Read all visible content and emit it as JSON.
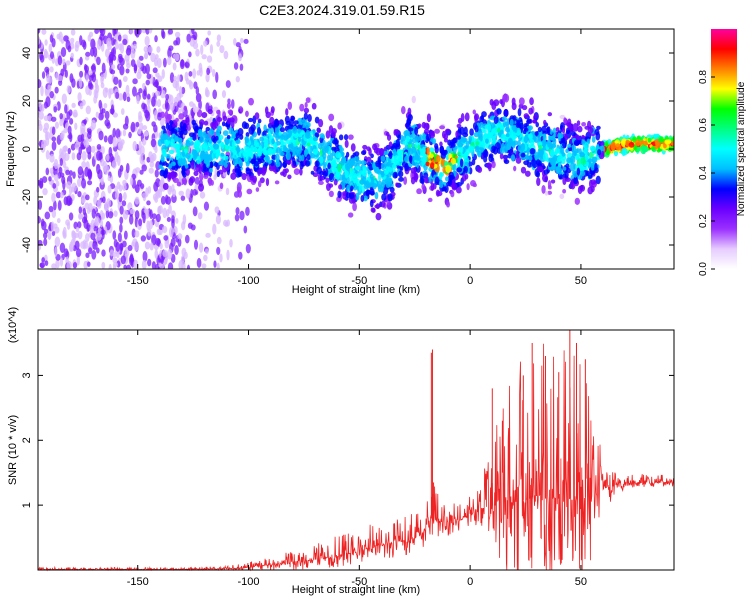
{
  "title": "C2E3.2024.319.01.59.R15",
  "chart_data": [
    {
      "type": "heatmap",
      "title": "C2E3.2024.319.01.59.R15",
      "xlabel": "Height of straight line (km)",
      "ylabel": "Frequency (Hz)",
      "xlim": [
        -195,
        92
      ],
      "ylim": [
        -50,
        50
      ],
      "xticks": [
        -150,
        -100,
        -50,
        0,
        50
      ],
      "yticks": [
        -40,
        -20,
        0,
        20,
        40
      ],
      "colorbar": {
        "label": "Normalized spectral amplitude",
        "range": [
          0,
          1
        ],
        "ticks": [
          "0.0",
          "0.2",
          "0.4",
          "0.6",
          "0.8"
        ],
        "colormap": [
          "#ffffff",
          "#e6ccff",
          "#9b30ff",
          "#6a00ff",
          "#0000ff",
          "#00bfff",
          "#00ffff",
          "#00ff80",
          "#00ff00",
          "#ffff00",
          "#ff8000",
          "#ff0000",
          "#ff00a0"
        ]
      },
      "ridge": [
        {
          "x": -140,
          "y": 0
        },
        {
          "x": -120,
          "y": 0
        },
        {
          "x": -100,
          "y": 0
        },
        {
          "x": -85,
          "y": 2
        },
        {
          "x": -75,
          "y": 5
        },
        {
          "x": -62,
          "y": -5
        },
        {
          "x": -50,
          "y": -12
        },
        {
          "x": -42,
          "y": -13
        },
        {
          "x": -35,
          "y": -8
        },
        {
          "x": -28,
          "y": 3
        },
        {
          "x": -20,
          "y": -3
        },
        {
          "x": -12,
          "y": -8
        },
        {
          "x": -5,
          "y": -3
        },
        {
          "x": 2,
          "y": 2
        },
        {
          "x": 12,
          "y": 8
        },
        {
          "x": 22,
          "y": 5
        },
        {
          "x": 32,
          "y": 0
        },
        {
          "x": 42,
          "y": -3
        },
        {
          "x": 50,
          "y": -5
        },
        {
          "x": 57,
          "y": -1
        },
        {
          "x": 65,
          "y": 1
        },
        {
          "x": 75,
          "y": 2
        },
        {
          "x": 92,
          "y": 2
        }
      ]
    },
    {
      "type": "line",
      "xlabel": "Height of straight line (km)",
      "ylabel": "SNR (10 * v/v)",
      "yscale_label": "(x10^4)",
      "xlim": [
        -195,
        92
      ],
      "ylim": [
        0,
        3.7
      ],
      "xticks": [
        -150,
        -100,
        -50,
        0,
        50
      ],
      "yticks": [
        1,
        2,
        3
      ],
      "series": [
        {
          "color": "#ee2222",
          "envelope": [
            {
              "x": -195,
              "base": 0.01,
              "amp": 0.03
            },
            {
              "x": -130,
              "base": 0.01,
              "amp": 0.03
            },
            {
              "x": -110,
              "base": 0.02,
              "amp": 0.04
            },
            {
              "x": -100,
              "base": 0.04,
              "amp": 0.08
            },
            {
              "x": -90,
              "base": 0.08,
              "amp": 0.15
            },
            {
              "x": -80,
              "base": 0.13,
              "amp": 0.22
            },
            {
              "x": -70,
              "base": 0.16,
              "amp": 0.27
            },
            {
              "x": -60,
              "base": 0.22,
              "amp": 0.33
            },
            {
              "x": -50,
              "base": 0.28,
              "amp": 0.35
            },
            {
              "x": -40,
              "base": 0.4,
              "amp": 0.4
            },
            {
              "x": -30,
              "base": 0.45,
              "amp": 0.4
            },
            {
              "x": -22,
              "base": 0.55,
              "amp": 0.4
            },
            {
              "x": -18,
              "base": 0.8,
              "amp": 0.6
            },
            {
              "x": -10,
              "base": 0.7,
              "amp": 0.3
            },
            {
              "x": 0,
              "base": 0.85,
              "amp": 0.3
            },
            {
              "x": 5,
              "base": 0.95,
              "amp": 0.4
            },
            {
              "x": 10,
              "base": 1.0,
              "amp": 1.5
            },
            {
              "x": 20,
              "base": 1.05,
              "amp": 2.2
            },
            {
              "x": 30,
              "base": 1.1,
              "amp": 2.4
            },
            {
              "x": 40,
              "base": 1.1,
              "amp": 2.5
            },
            {
              "x": 50,
              "base": 1.1,
              "amp": 2.3
            },
            {
              "x": 55,
              "base": 1.15,
              "amp": 1.8
            },
            {
              "x": 60,
              "base": 1.25,
              "amp": 0.5
            },
            {
              "x": 70,
              "base": 1.35,
              "amp": 0.15
            },
            {
              "x": 80,
              "base": 1.35,
              "amp": 0.12
            },
            {
              "x": 92,
              "base": 1.35,
              "amp": 0.12
            }
          ],
          "peaks": [
            {
              "x": -17.5,
              "value": 3.35
            },
            {
              "x": -17,
              "value": 3.4
            },
            {
              "x": -16.5,
              "value": 1.35
            },
            {
              "x": 10,
              "value": 2.8
            },
            {
              "x": 24,
              "value": 3.0
            },
            {
              "x": 28,
              "value": 3.5
            },
            {
              "x": 34,
              "value": 3.3
            },
            {
              "x": 40,
              "value": 3.05
            },
            {
              "x": 45,
              "value": 3.7
            },
            {
              "x": 48,
              "value": 3.5
            },
            {
              "x": 52,
              "value": 3.25
            }
          ]
        }
      ]
    }
  ]
}
